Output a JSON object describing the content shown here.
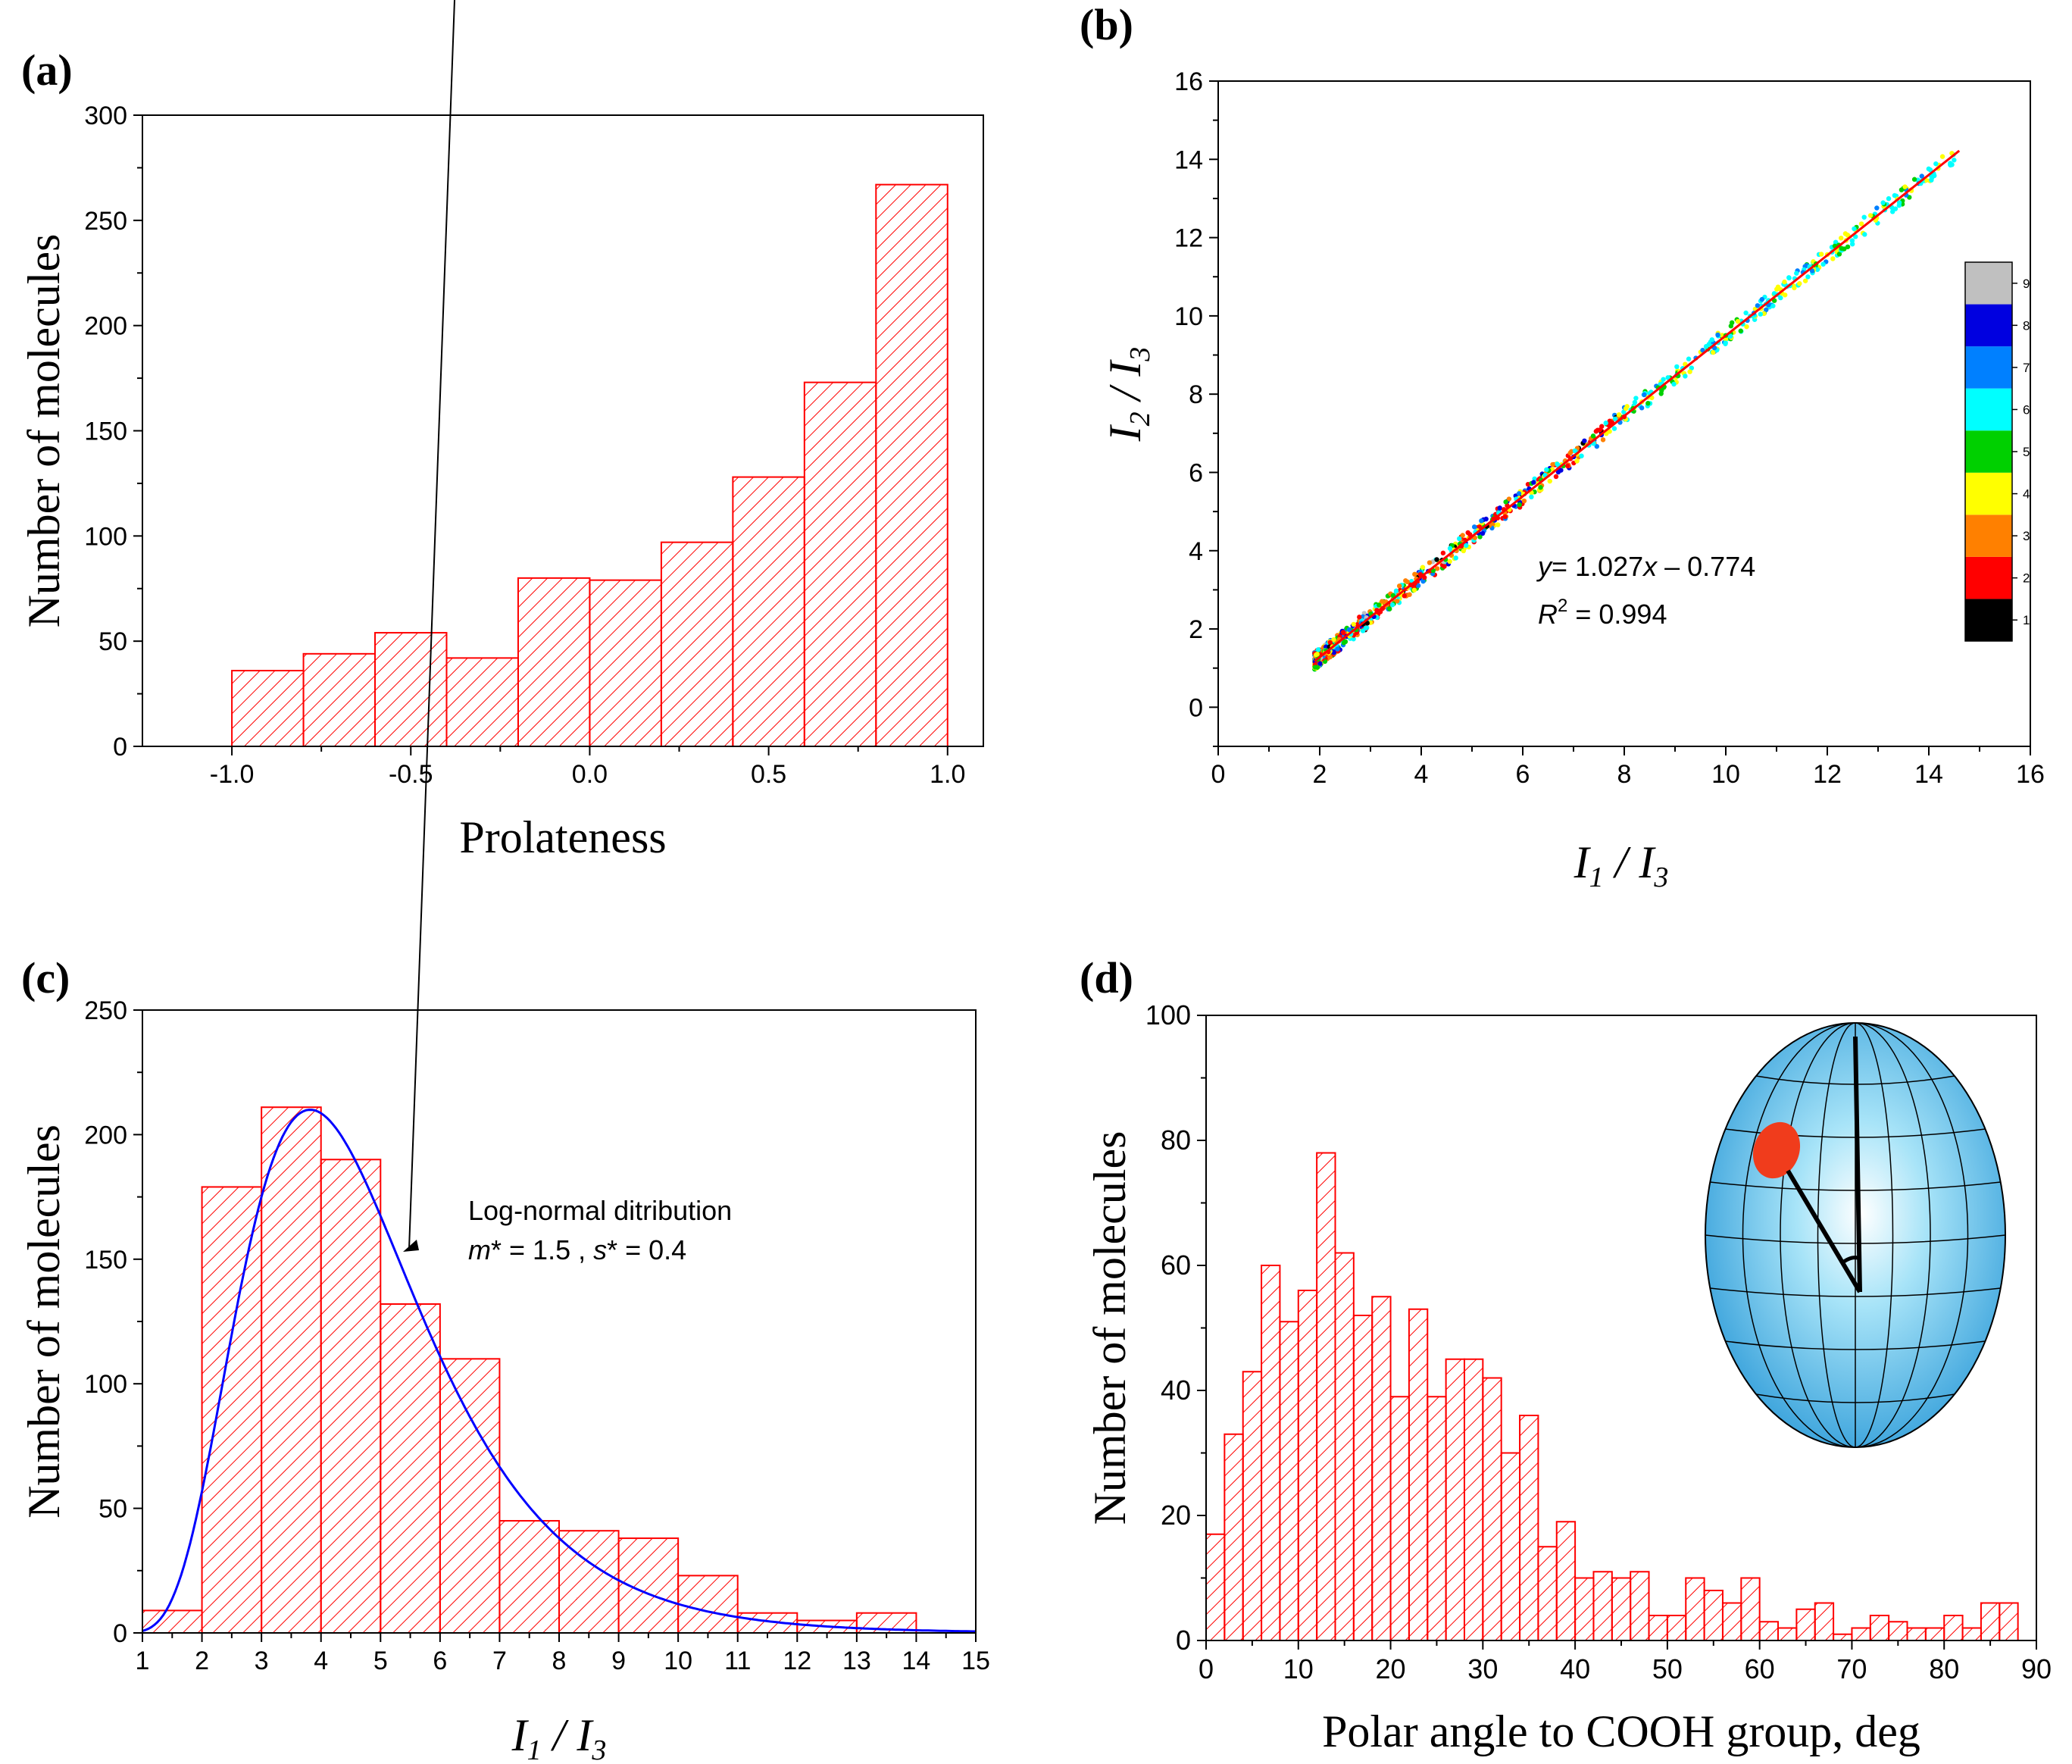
{
  "chart_data": [
    {
      "panel": "(a)",
      "type": "bar",
      "title": "",
      "xlabel": "Prolateness",
      "ylabel": "Number of molecules",
      "xlim": [
        -1.25,
        1.1
      ],
      "ylim": [
        0,
        300
      ],
      "xticks": [
        "-1.0",
        "-0.5",
        "0.0",
        "0.5",
        "1.0"
      ],
      "yticks": [
        "0",
        "50",
        "100",
        "150",
        "200",
        "250",
        "300"
      ],
      "bin_edges": [
        -1.0,
        -0.8,
        -0.6,
        -0.4,
        -0.2,
        0.0,
        0.2,
        0.4,
        0.6,
        0.8,
        1.0
      ],
      "values": [
        36,
        44,
        54,
        42,
        80,
        79,
        97,
        128,
        173,
        267
      ],
      "color": "#ff0000"
    },
    {
      "panel": "(b)",
      "type": "scatter",
      "xlabel": "I1 / I3",
      "ylabel": "I2 / I3",
      "xlim": [
        0,
        16
      ],
      "ylim": [
        -1,
        16
      ],
      "xticks": [
        "0",
        "2",
        "4",
        "6",
        "8",
        "10",
        "12",
        "14",
        "16"
      ],
      "yticks": [
        "0",
        "2",
        "4",
        "6",
        "8",
        "10",
        "12",
        "14",
        "16"
      ],
      "fit": {
        "slope": 1.027,
        "intercept": -0.774,
        "x_range": [
          1.9,
          14.6
        ],
        "color": "#ff0000"
      },
      "equation": "= 1.027",
      "equation_tail": " – 0.774",
      "r2_text": " = 0.994",
      "colorbar": {
        "labels": [
          "1",
          "2",
          "3",
          "4",
          "5",
          "6",
          "7",
          "8",
          "9"
        ],
        "colors": [
          "#000000",
          "#ff0000",
          "#ff8000",
          "#ffff00",
          "#00d000",
          "#00ffff",
          "#0080ff",
          "#0000e0",
          "#c0c0c0"
        ]
      }
    },
    {
      "panel": "(c)",
      "type": "bar",
      "xlabel": "I1 / I3",
      "ylabel": "Number of molecules",
      "xlim": [
        1,
        15
      ],
      "ylim": [
        0,
        250
      ],
      "xticks": [
        "1",
        "2",
        "3",
        "4",
        "5",
        "6",
        "7",
        "8",
        "9",
        "10",
        "11",
        "12",
        "13",
        "14",
        "15"
      ],
      "yticks": [
        "0",
        "50",
        "100",
        "150",
        "200",
        "250"
      ],
      "bin_edges": [
        1,
        2,
        3,
        4,
        5,
        6,
        7,
        8,
        9,
        10,
        11,
        12,
        13,
        14
      ],
      "values": [
        9,
        179,
        211,
        190,
        132,
        110,
        45,
        41,
        38,
        23,
        8,
        5,
        8
      ],
      "curve": {
        "name": "Log-normal ditribution",
        "m": 1.5,
        "s": 0.4,
        "peak": 210,
        "color": "#0000ff"
      },
      "annotation_title": "Log-normal ditribution",
      "annotation_m": "= 1.5 ,",
      "annotation_s": "= 0.4"
    },
    {
      "panel": "(d)",
      "type": "bar",
      "xlabel": "Polar angle to COOH group, deg",
      "ylabel": "Number of molecules",
      "xlim": [
        0,
        90
      ],
      "ylim": [
        0,
        100
      ],
      "xticks": [
        "0",
        "10",
        "20",
        "30",
        "40",
        "50",
        "60",
        "70",
        "80",
        "90"
      ],
      "yticks": [
        "0",
        "20",
        "40",
        "60",
        "80",
        "100"
      ],
      "bin_width": 2,
      "values": [
        17,
        33,
        43,
        60,
        51,
        56,
        78,
        62,
        52,
        55,
        39,
        53,
        39,
        45,
        45,
        42,
        30,
        36,
        15,
        19,
        10,
        11,
        10,
        11,
        4,
        4,
        10,
        8,
        6,
        10,
        3,
        2,
        5,
        6,
        1,
        2,
        4,
        3,
        2,
        2,
        4,
        2,
        6,
        6
      ]
    }
  ]
}
